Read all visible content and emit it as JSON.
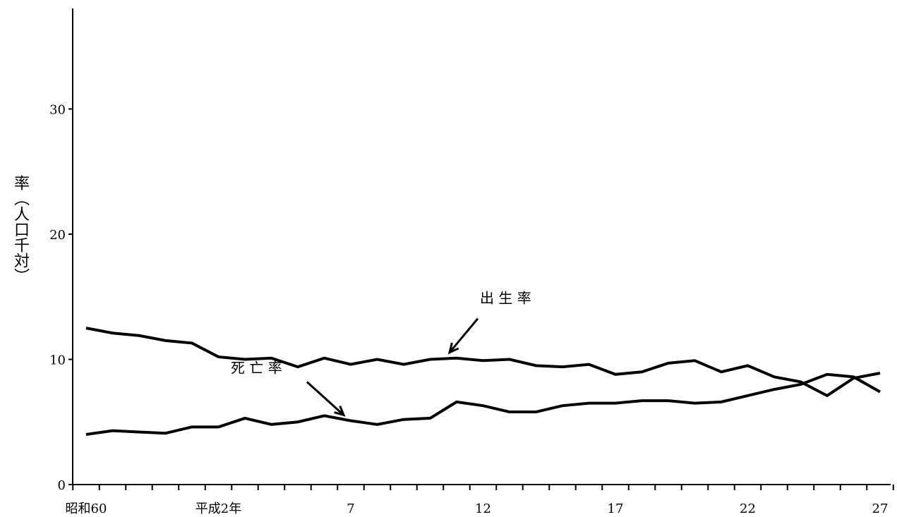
{
  "chart_data": {
    "type": "line",
    "title": "",
    "xlabel": "",
    "ylabel": "率（人口千対）",
    "ylim": [
      0,
      37
    ],
    "yticks": [
      0,
      10,
      20,
      30
    ],
    "x": [
      60,
      61,
      62,
      63,
      1,
      2,
      3,
      4,
      5,
      6,
      7,
      8,
      9,
      10,
      11,
      12,
      13,
      14,
      15,
      16,
      17,
      18,
      19,
      20,
      21,
      22,
      23,
      24,
      25,
      26,
      27
    ],
    "xtick_labels": [
      {
        "index": 1,
        "label": "昭和60"
      },
      {
        "index": 6,
        "label": "平成2年"
      },
      {
        "index": 11,
        "label": "7"
      },
      {
        "index": 16,
        "label": "12"
      },
      {
        "index": 21,
        "label": "17"
      },
      {
        "index": 26,
        "label": "22"
      },
      {
        "index": 31,
        "label": "27"
      }
    ],
    "series": [
      {
        "name": "出生率",
        "values": [
          12.5,
          12.1,
          11.9,
          11.5,
          11.3,
          10.2,
          10.0,
          10.1,
          9.4,
          10.1,
          9.6,
          10.0,
          9.6,
          10.0,
          10.1,
          9.9,
          10.0,
          9.5,
          9.4,
          9.6,
          8.8,
          9.0,
          9.7,
          9.9,
          9.0,
          9.5,
          8.6,
          8.2,
          7.1,
          8.5,
          8.9
        ]
      },
      {
        "name": "死亡率",
        "values": [
          4.0,
          4.3,
          4.2,
          4.1,
          4.6,
          4.6,
          5.3,
          4.8,
          5.0,
          5.5,
          5.1,
          4.8,
          5.2,
          5.3,
          6.6,
          6.3,
          5.8,
          5.8,
          6.3,
          6.5,
          6.5,
          6.7,
          6.7,
          6.5,
          6.6,
          7.1,
          7.6,
          8.0,
          8.8,
          8.6,
          7.4
        ]
      }
    ],
    "annotations": [
      {
        "text": "出 生 率",
        "series": "出生率",
        "point_index": 14
      },
      {
        "text": "死 亡 率",
        "series": "死亡率",
        "point_index": 10
      }
    ],
    "grid": false,
    "legend": "none"
  }
}
